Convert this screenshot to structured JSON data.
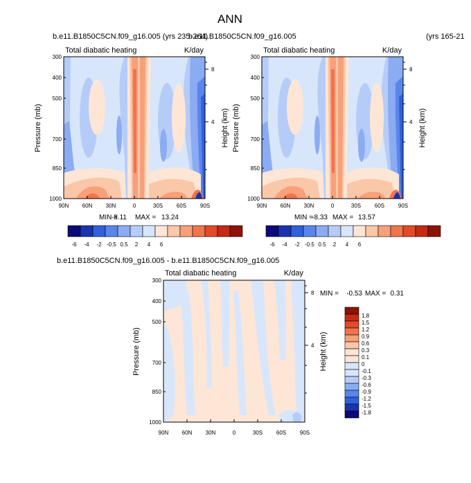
{
  "page_title": "ANN",
  "chart_data": [
    {
      "type": "heatmap",
      "id": "p1",
      "case_title": "b.e11.B1850C5CN.f09_g16.005 (yrs 235-264)",
      "left_string": "Total diabatic heating",
      "right_string": "K/day",
      "xlabel": "",
      "ylabel": "Pressure (mb)",
      "y2label": "Height (km)",
      "x_ticks": [
        "90N",
        "60N",
        "30N",
        "0",
        "30S",
        "60S",
        "90S"
      ],
      "y_ticks": [
        "300",
        "400",
        "500",
        "700",
        "850",
        "1000"
      ],
      "y2_ticks": [
        "8",
        "4"
      ],
      "stats": {
        "min_label": "MIN =",
        "min": "-8.11",
        "max_label": "MAX =",
        "max": "13.24"
      },
      "colorbar_labels": [
        "-6",
        "-4",
        "-2",
        "-0.5",
        "0.5",
        "2",
        "4",
        "6"
      ]
    },
    {
      "type": "heatmap",
      "id": "p2",
      "case_title": "b.e11.B1850C5CN.f09_g16.005",
      "case_years": "(yrs 165-21",
      "left_string": "Total diabatic heating",
      "right_string": "K/day",
      "xlabel": "",
      "ylabel": "Pressure (mb)",
      "y2label": "Height (km)",
      "x_ticks": [
        "90N",
        "60N",
        "30N",
        "0",
        "30S",
        "60S",
        "90S"
      ],
      "y_ticks": [
        "300",
        "400",
        "500",
        "700",
        "850",
        "1000"
      ],
      "y2_ticks": [
        "8",
        "4"
      ],
      "stats": {
        "min_label": "MIN =",
        "min": "-8.33",
        "max_label": "MAX =",
        "max": "13.57"
      },
      "colorbar_labels": [
        "-6",
        "-4",
        "-2",
        "-0.5",
        "0.5",
        "2",
        "4",
        "6"
      ]
    },
    {
      "type": "heatmap",
      "id": "p3",
      "case_title": "b.e11.B1850C5CN.f09_g16.005 - b.e11.B1850C5CN.f09_g16.005",
      "left_string": "Total diabatic heating",
      "right_string": "K/day",
      "xlabel": "",
      "ylabel": "Pressure (mb)",
      "y2label": "Height (km)",
      "x_ticks": [
        "90N",
        "60N",
        "30N",
        "0",
        "30S",
        "60S",
        "90S"
      ],
      "y_ticks": [
        "300",
        "400",
        "500",
        "700",
        "850",
        "1000"
      ],
      "y2_ticks": [
        "8",
        "4"
      ],
      "stats": {
        "min_label": "MIN =",
        "min": "-0.53",
        "max_label": "MAX =",
        "max": "0.31"
      },
      "colorbar_labels": [
        "1.8",
        "1.5",
        "1.2",
        "0.9",
        "0.6",
        "0.3",
        "0.1",
        "0",
        "-0.1",
        "-0.3",
        "-0.6",
        "-0.9",
        "-1.2",
        "-1.5",
        "-1.8"
      ]
    }
  ],
  "colors": {
    "c1": "#0a0a78",
    "c2": "#1a34b0",
    "c3": "#3060dc",
    "c4": "#5a86ec",
    "c5": "#8bacf2",
    "c6": "#b6ccf8",
    "c7": "#d8e6fb",
    "c8": "#fde6d6",
    "c9": "#fbc7a9",
    "c10": "#f7a07a",
    "c11": "#f0744c",
    "c12": "#e24a2a",
    "c13": "#c52a14",
    "c14": "#8e1208"
  }
}
